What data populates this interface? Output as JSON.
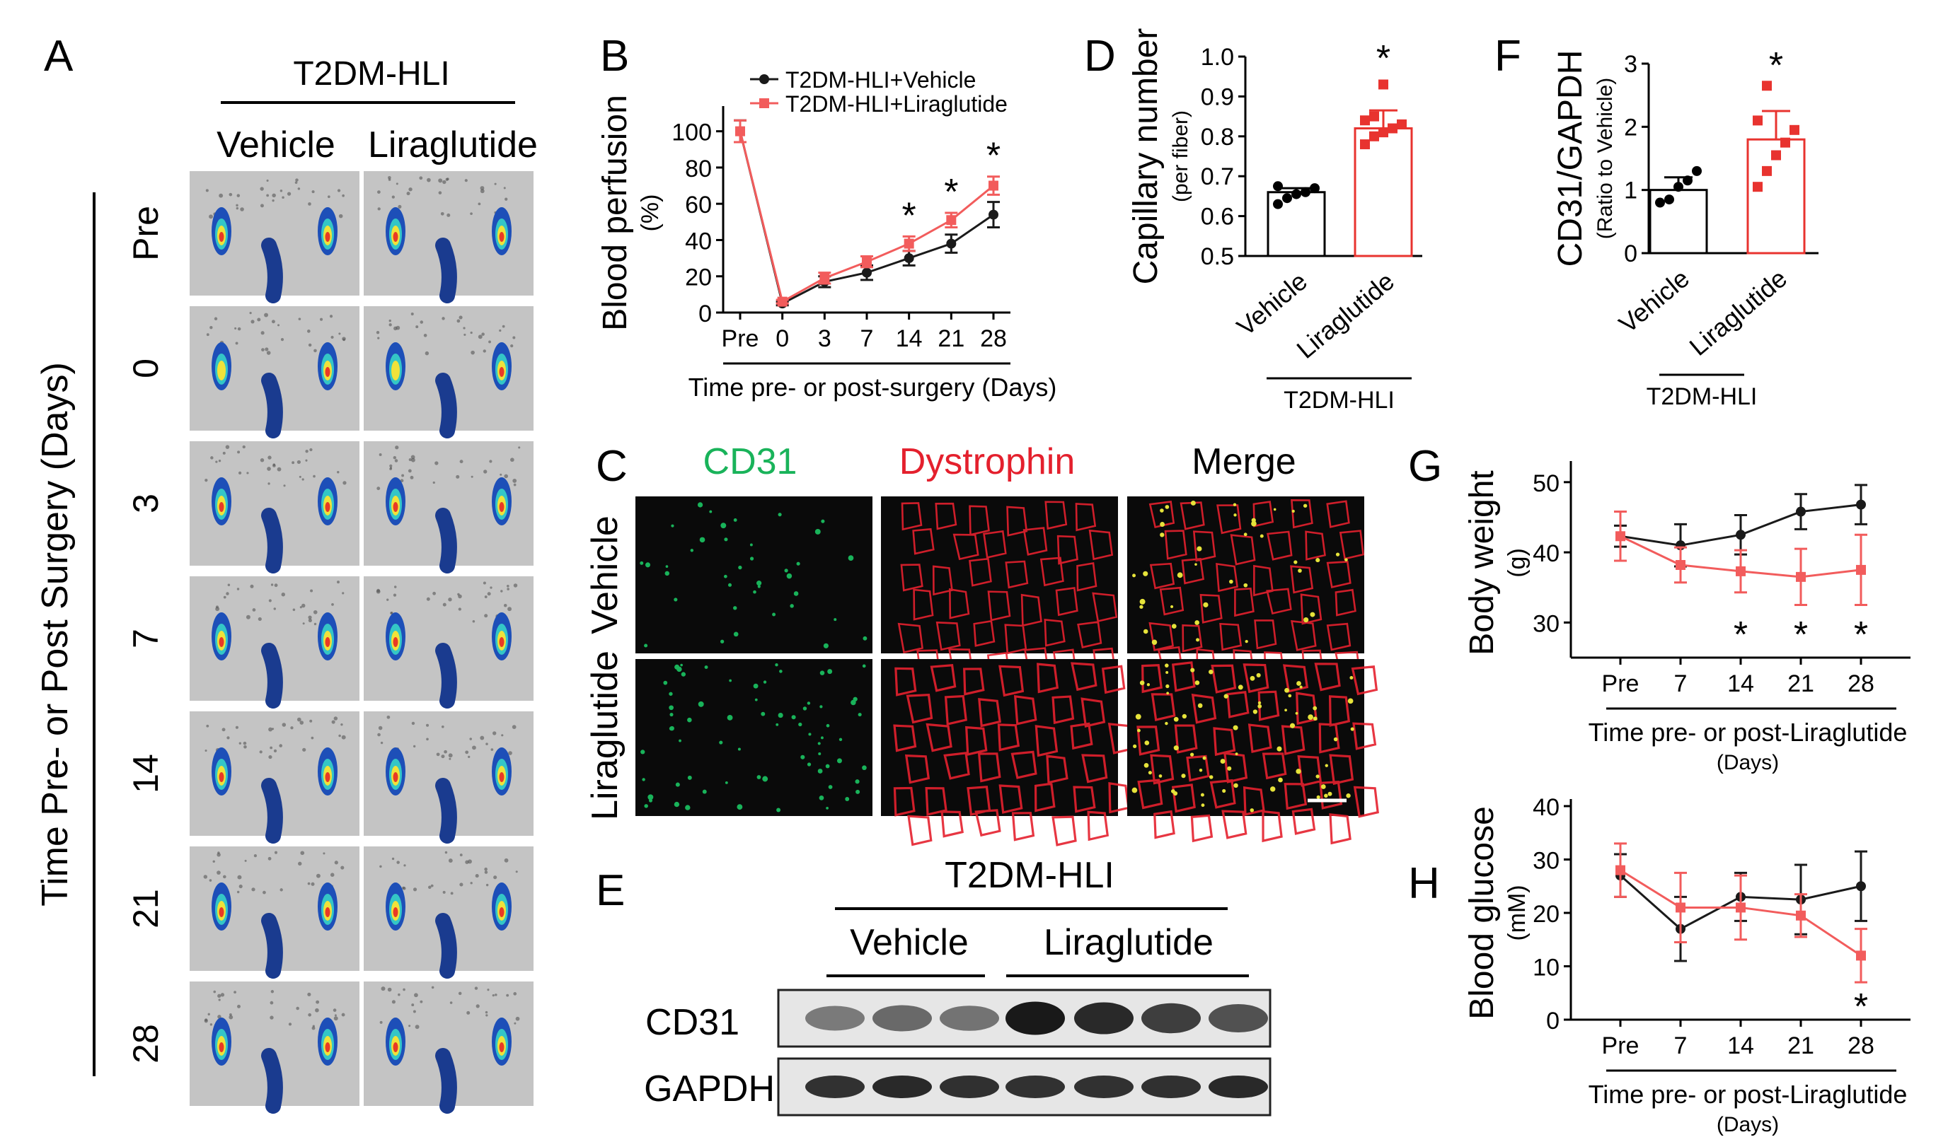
{
  "panel_letters": {
    "A": "A",
    "B": "B",
    "C": "C",
    "D": "D",
    "E": "E",
    "F": "F",
    "G": "G",
    "H": "H"
  },
  "colors": {
    "vehicle": "#1a1a1a",
    "liraglutide": "#f25c5c",
    "bar_red": "#e8332f",
    "cd31": "#19b35a",
    "dystrophin": "#e4202d",
    "tissue_bg": "#0a0a0a",
    "laser_bg": "#c4c4c4",
    "blot_bg": "#e6e6e6"
  },
  "panel_a": {
    "group_title": "T2DM-HLI",
    "col_labels": [
      "Vehicle",
      "Liraglutide"
    ],
    "row_axis_label": "Time Pre- or Post Surgery (Days)",
    "row_labels": [
      "Pre",
      "0",
      "3",
      "7",
      "14",
      "21",
      "28"
    ]
  },
  "panel_c": {
    "channel_labels": [
      "CD31",
      "Dystrophin",
      "Merge"
    ],
    "row_labels": [
      "Vehicle",
      "Liraglutide"
    ]
  },
  "panel_e": {
    "group_title": "T2DM-HLI",
    "group_labels": [
      "Vehicle",
      "Liraglutide"
    ],
    "lane_counts": [
      3,
      4
    ],
    "bands": [
      {
        "name": "CD31",
        "intensity": [
          0.35,
          0.45,
          0.38,
          0.95,
          0.85,
          0.72,
          0.6
        ]
      },
      {
        "name": "GAPDH",
        "intensity": [
          0.8,
          0.85,
          0.82,
          0.8,
          0.8,
          0.82,
          0.85
        ]
      }
    ]
  },
  "chart_data": [
    {
      "id": "B",
      "type": "line",
      "ylabel": "Blood perfusion",
      "ylabel_unit": "(%)",
      "xlabel": "Time pre- or post-surgery (Days)",
      "categories": [
        "Pre",
        "0",
        "3",
        "7",
        "14",
        "21",
        "28"
      ],
      "ylim": [
        0,
        110
      ],
      "yticks": [
        0,
        20,
        40,
        60,
        80,
        100
      ],
      "legend_position": "top",
      "series": [
        {
          "name": "T2DM-HLI+Vehicle",
          "color": "#1a1a1a",
          "values": [
            100,
            5,
            17,
            22,
            30,
            38,
            54
          ],
          "errors": [
            6,
            1,
            3,
            4,
            4,
            5,
            7
          ]
        },
        {
          "name": "T2DM-HLI+Liraglutide",
          "color": "#f25c5c",
          "values": [
            100,
            6,
            19,
            28,
            38,
            51,
            70
          ],
          "errors": [
            6,
            1,
            3,
            3,
            4,
            4,
            5
          ]
        }
      ],
      "significance": [
        "",
        "",
        "",
        "",
        "*",
        "*",
        "*"
      ]
    },
    {
      "id": "D",
      "type": "bar",
      "ylabel": "Capillary number",
      "ylabel_unit": "(per fiber)",
      "categories": [
        "Vehicle",
        "Liraglutide"
      ],
      "group_label": "T2DM-HLI",
      "ylim": [
        0.5,
        1.0
      ],
      "yticks": [
        "0.5",
        "0.6",
        "0.7",
        "0.8",
        "0.9",
        "1.0"
      ],
      "values": [
        0.66,
        0.82
      ],
      "errors": [
        0.01,
        0.045
      ],
      "points": [
        [
          0.63,
          0.645,
          0.655,
          0.66,
          0.67,
          0.675
        ],
        [
          0.78,
          0.8,
          0.81,
          0.82,
          0.83,
          0.84,
          0.85,
          0.93
        ]
      ],
      "significance": [
        "",
        "*"
      ]
    },
    {
      "id": "F",
      "type": "bar",
      "ylabel": "CD31/GAPDH",
      "ylabel_unit": "(Ratio to Vehicle)",
      "categories": [
        "Vehicle",
        "Liraglutide"
      ],
      "group_label": "T2DM-HLI",
      "ylim": [
        0,
        3
      ],
      "yticks": [
        "0",
        "1",
        "2",
        "3"
      ],
      "values": [
        1.0,
        1.8
      ],
      "errors": [
        0.2,
        0.45
      ],
      "points": [
        [
          0.8,
          0.85,
          1.05,
          1.15,
          1.3
        ],
        [
          1.05,
          1.3,
          1.55,
          1.75,
          1.95,
          2.1,
          2.65
        ]
      ],
      "significance": [
        "",
        "*"
      ]
    },
    {
      "id": "G",
      "type": "line",
      "ylabel": "Body weight",
      "ylabel_unit": "(g)",
      "xlabel": "Time pre- or post-Liraglutide",
      "xlabel_unit": "(Days)",
      "categories": [
        "Pre",
        "7",
        "14",
        "21",
        "28"
      ],
      "ylim": [
        25,
        52
      ],
      "yticks": [
        30,
        40,
        50
      ],
      "series": [
        {
          "name": "Vehicle",
          "color": "#1a1a1a",
          "values": [
            42.3,
            41,
            42.5,
            45.8,
            46.8
          ],
          "errors": [
            1.5,
            3,
            2.8,
            2.5,
            2.8
          ]
        },
        {
          "name": "Liraglutide",
          "color": "#f25c5c",
          "values": [
            42.3,
            38.2,
            37.3,
            36.5,
            37.5
          ],
          "errors": [
            3.5,
            2.5,
            3,
            4,
            5
          ]
        }
      ],
      "significance": [
        "",
        "",
        "*",
        "*",
        "*"
      ]
    },
    {
      "id": "H",
      "type": "line",
      "ylabel": "Blood glucose",
      "ylabel_unit": "(mM)",
      "xlabel": "Time pre- or post-Liraglutide",
      "xlabel_unit": "(Days)",
      "categories": [
        "Pre",
        "7",
        "14",
        "21",
        "28"
      ],
      "ylim": [
        0,
        40
      ],
      "yticks": [
        0,
        10,
        20,
        30,
        40
      ],
      "series": [
        {
          "name": "Vehicle",
          "color": "#1a1a1a",
          "values": [
            27,
            17,
            23,
            22.5,
            25
          ],
          "errors": [
            4,
            6,
            4.5,
            6.5,
            6.5
          ]
        },
        {
          "name": "Liraglutide",
          "color": "#f25c5c",
          "values": [
            28,
            21,
            21,
            19.5,
            12
          ],
          "errors": [
            5,
            6.5,
            6,
            4,
            5
          ]
        }
      ],
      "significance": [
        "",
        "",
        "",
        "",
        "*"
      ]
    }
  ]
}
